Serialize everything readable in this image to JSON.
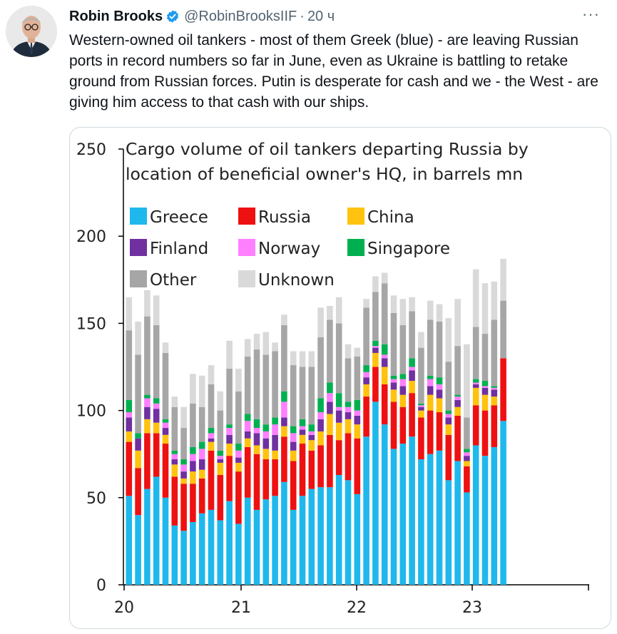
{
  "author": {
    "name": "Robin Brooks",
    "handle": "@RobinBrooksIIF",
    "separator": "·",
    "time": "20 ч",
    "more_label": "···"
  },
  "tweet": {
    "text": "Western-owned oil tankers - most of them Greek (blue) - are leaving Russian ports in record numbers so far in June, even as Ukraine is battling to retake ground from Russian forces. Putin is desperate for cash and we - the West - are giving him access to that cash with our ships."
  },
  "colors": {
    "Greece": "#1fb8ec",
    "Russia": "#ee1111",
    "China": "#ffc20e",
    "Finland": "#7030a0",
    "Norway": "#ff80ff",
    "Singapore": "#00b050",
    "Other": "#a6a6a6",
    "Unknown": "#d9d9d9",
    "verified": "#1d9bf0"
  },
  "chart_data": {
    "type": "bar",
    "stacked": true,
    "title": "Cargo volume of oil tankers departing Russia by location of beneficial owner's HQ, in barrels mn",
    "title_lines": [
      "Cargo volume of oil tankers departing Russia by",
      "location of beneficial owner's HQ, in barrels mn"
    ],
    "ylim": [
      0,
      250
    ],
    "y_ticks": [
      "0",
      "50",
      "100",
      "150",
      "200",
      "250"
    ],
    "x_ticks": [
      "20",
      "21",
      "22",
      "23"
    ],
    "legend_placement": "top-left, inside plot",
    "grid": false,
    "series": [
      {
        "name": "Greece",
        "values": [
          51,
          40,
          55,
          62,
          50,
          34,
          31,
          36,
          41,
          43,
          37,
          48,
          35,
          50,
          43,
          49,
          51,
          59,
          43,
          51,
          55,
          56,
          56,
          63,
          60,
          52,
          85,
          105,
          92,
          78,
          81,
          85,
          72,
          75,
          77,
          60,
          71,
          53,
          80,
          74,
          79,
          94
        ]
      },
      {
        "name": "Russia",
        "values": [
          31,
          27,
          32,
          25,
          31,
          28,
          27,
          22,
          20,
          34,
          26,
          26,
          30,
          29,
          32,
          23,
          21,
          26,
          28,
          30,
          22,
          24,
          30,
          20,
          27,
          32,
          23,
          20,
          23,
          27,
          21,
          25,
          24,
          25,
          22,
          26,
          26,
          15,
          23,
          26,
          24,
          36
        ]
      },
      {
        "name": "China",
        "values": [
          6,
          10,
          8,
          6,
          5,
          7,
          3,
          7,
          5,
          5,
          7,
          7,
          5,
          5,
          5,
          6,
          5,
          6,
          6,
          5,
          6,
          8,
          12,
          10,
          8,
          8,
          7,
          8,
          10,
          7,
          7,
          7,
          4,
          9,
          8,
          6,
          5,
          3,
          10,
          9,
          5,
          0
        ]
      },
      {
        "name": "Finland",
        "values": [
          8,
          7,
          7,
          8,
          4,
          3,
          4,
          6,
          6,
          2,
          2,
          5,
          3,
          4,
          7,
          6,
          9,
          5,
          5,
          3,
          3,
          7,
          7,
          7,
          4,
          5,
          4,
          3,
          5,
          4,
          5,
          6,
          2,
          5,
          5,
          4,
          4,
          3,
          2,
          4,
          4,
          0
        ]
      },
      {
        "name": "Norway",
        "values": [
          3,
          0,
          5,
          3,
          3,
          3,
          4,
          4,
          6,
          3,
          2,
          4,
          4,
          6,
          3,
          4,
          6,
          9,
          5,
          2,
          2,
          4,
          5,
          2,
          3,
          3,
          3,
          1,
          2,
          2,
          4,
          2,
          1,
          4,
          3,
          2,
          2,
          2,
          1,
          1,
          1,
          0
        ]
      },
      {
        "name": "Singapore",
        "values": [
          7,
          3,
          2,
          3,
          2,
          2,
          3,
          4,
          4,
          3,
          3,
          2,
          4,
          4,
          5,
          4,
          4,
          6,
          4,
          4,
          4,
          8,
          6,
          8,
          3,
          6,
          4,
          3,
          6,
          2,
          3,
          5,
          1,
          2,
          4,
          2,
          1,
          2,
          2,
          3,
          1,
          0
        ]
      },
      {
        "name": "Other",
        "values": [
          40,
          45,
          45,
          42,
          38,
          25,
          18,
          25,
          20,
          25,
          23,
          32,
          30,
          33,
          40,
          40,
          38,
          38,
          35,
          30,
          33,
          35,
          36,
          40,
          25,
          25,
          33,
          28,
          35,
          36,
          28,
          27,
          32,
          32,
          32,
          28,
          28,
          18,
          30,
          27,
          38,
          33
        ]
      },
      {
        "name": "Unknown",
        "values": [
          19,
          19,
          15,
          17,
          6,
          6,
          12,
          17,
          18,
          11,
          11,
          16,
          13,
          10,
          9,
          13,
          5,
          6,
          8,
          9,
          9,
          17,
          8,
          15,
          8,
          5,
          5,
          9,
          6,
          10,
          15,
          8,
          9,
          11,
          10,
          25,
          27,
          42,
          33,
          29,
          22,
          24
        ]
      }
    ]
  }
}
